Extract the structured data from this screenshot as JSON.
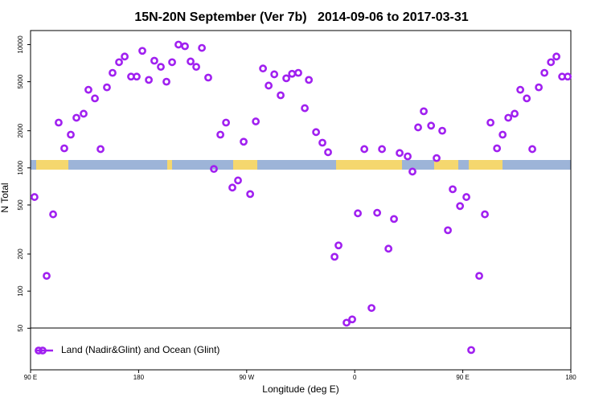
{
  "chart_data": {
    "type": "scatter",
    "title": "15N-20N September (Ver 7b)   2014-09-06 to 2017-03-31",
    "xlabel": "Longitude (deg E)",
    "ylabel": "N Total",
    "xlim": [
      90,
      540
    ],
    "xticks": [
      {
        "value": 90,
        "label": "90 E"
      },
      180,
      {
        "value": 270,
        "label": "90 W"
      },
      {
        "value": 360,
        "label": "0"
      },
      {
        "value": 450,
        "label": "90 E"
      },
      {
        "value": 540,
        "label": "180"
      }
    ],
    "ylim": [
      23,
      13000
    ],
    "yticks": [
      50,
      100,
      200,
      500,
      1000,
      2000,
      5000,
      10000
    ],
    "log_y": true,
    "legend": "bottom-left",
    "series": [
      {
        "name": "Land (Nadir&Glint) and Ocean (Glint)",
        "color": "#a020f0",
        "x": [
          93.3,
          103.4,
          108.8,
          113.4,
          118.1,
          123.5,
          128.2,
          134.2,
          138.2,
          143.6,
          148.3,
          153.6,
          158.3,
          163.7,
          168.4,
          173.7,
          178.4,
          183.1,
          188.5,
          193.1,
          198.5,
          203.2,
          207.9,
          213.2,
          218.6,
          223.3,
          228.0,
          232.7,
          238.0,
          242.7,
          248.1,
          252.8,
          258.1,
          262.8,
          267.5,
          272.9,
          277.6,
          283.6,
          288.3,
          293.0,
          298.3,
          303.0,
          307.8,
          313.0,
          318.4,
          321.8,
          327.8,
          333.1,
          337.8,
          343.2,
          346.5,
          353.2,
          357.9,
          362.6,
          368.0,
          374.0,
          378.7,
          382.7,
          388.1,
          392.7,
          397.4,
          404.1,
          408.1,
          412.8,
          417.5,
          423.6,
          428.2,
          432.9,
          437.6,
          441.6,
          447.7,
          453.0,
          457.0,
          463.7,
          468.4,
          473.1,
          478.5,
          483.2,
          487.9,
          493.2,
          497.9,
          503.3,
          507.9,
          513.3,
          518.0,
          523.4,
          528.0,
          532.7,
          537.4
        ],
        "values": [
          580,
          133,
          420,
          2330,
          1440,
          1860,
          2550,
          2750,
          4300,
          3660,
          1420,
          4500,
          5900,
          7200,
          8000,
          5500,
          5500,
          8900,
          5170,
          7400,
          6600,
          5000,
          7200,
          10000,
          9700,
          7300,
          6600,
          9400,
          5400,
          980,
          1860,
          2330,
          692,
          791,
          1630,
          613,
          2380,
          6400,
          4650,
          5740,
          3880,
          5330,
          5800,
          5900,
          3050,
          5170,
          1950,
          1600,
          1340,
          190,
          235,
          55.5,
          59,
          428,
          1420,
          73,
          432,
          1420,
          221,
          385,
          1320,
          1240,
          933,
          2130,
          2880,
          2200,
          1200,
          2000,
          312,
          671,
          490,
          580,
          33.3,
          133,
          420,
          2330,
          1440,
          1860,
          2550,
          2750,
          4300,
          3660,
          1420,
          4500,
          5900,
          7200,
          8000,
          5500,
          5500
        ]
      }
    ]
  }
}
